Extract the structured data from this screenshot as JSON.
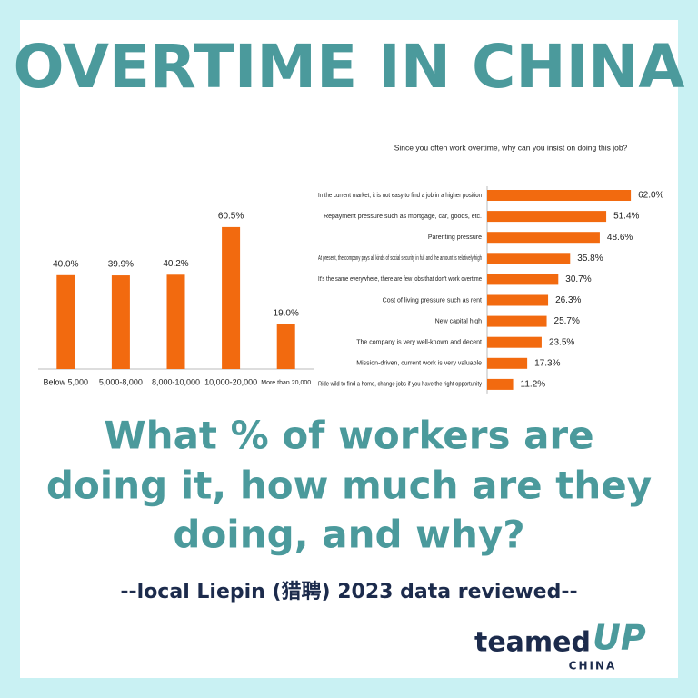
{
  "title": "OVERTIME IN CHINA",
  "subtitle_lines": [
    "What % of workers are",
    "doing it, how much are they",
    "doing, and why?"
  ],
  "source": "--local Liepin (猎聘) 2023 data reviewed--",
  "logo": {
    "main": "teamed",
    "accent": "UP",
    "sub": "CHINA"
  },
  "chart_data": [
    {
      "type": "bar",
      "color": "#f26a0f",
      "categories": [
        "Below 5,000",
        "5,000-8,000",
        "8,000-10,000",
        "10,000-20,000",
        "More than 20,000"
      ],
      "values": [
        40.0,
        39.9,
        40.2,
        60.5,
        19.0
      ],
      "value_labels": [
        "40.0%",
        "39.9%",
        "40.2%",
        "60.5%",
        "19.0%"
      ]
    },
    {
      "type": "hbar",
      "color": "#f26a0f",
      "title": "Since you often work overtime, why can you insist on doing this job?",
      "categories": [
        "In the current market, it is not easy to find a job in a higher position",
        "Repayment pressure such as mortgage, car, goods, etc.",
        "Parenting pressure",
        "At present, the company pays all kinds of social security in full and the amount is relatively high",
        "It's the same everywhere, there are few jobs that don't work overtime",
        "Cost of living pressure such as rent",
        "New capital high",
        "The company is very well-known and decent",
        "Mission-driven, current work is very valuable",
        "Ride wild to find a home, change jobs if you have the right opportunity"
      ],
      "values": [
        62.0,
        51.4,
        48.6,
        35.8,
        30.7,
        26.3,
        25.7,
        23.5,
        17.3,
        11.2
      ],
      "value_labels": [
        "62.0%",
        "51.4%",
        "48.6%",
        "35.8%",
        "30.7%",
        "26.3%",
        "25.7%",
        "23.5%",
        "17.3%",
        "11.2%"
      ]
    }
  ]
}
